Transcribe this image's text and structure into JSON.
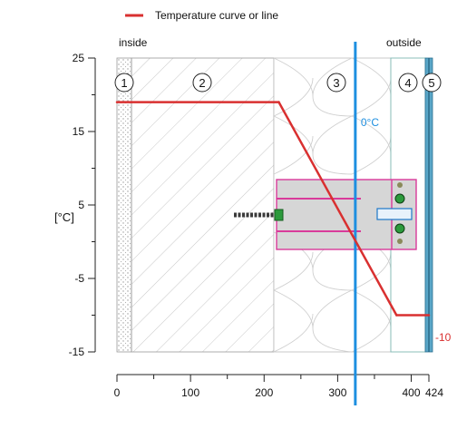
{
  "legend": {
    "label": "Temperature curve or line",
    "color": "#d93030"
  },
  "side_labels": {
    "inside": "inside",
    "outside": "outside"
  },
  "y_axis": {
    "label": "[°C]",
    "ticks": [
      "25",
      "15",
      "5",
      "-5",
      "-15"
    ]
  },
  "x_axis": {
    "ticks": [
      "0",
      "100",
      "200",
      "300",
      "400",
      "424"
    ]
  },
  "layers": [
    "1",
    "2",
    "3",
    "4",
    "5"
  ],
  "zero_line": {
    "label": "0°C",
    "color": "#1e8fe0"
  },
  "outside_temp_label": "-10",
  "chart_data": {
    "type": "line",
    "series": [
      {
        "x": [
          0,
          220,
          380,
          424
        ],
        "y": [
          19,
          19,
          -10,
          -10
        ]
      }
    ],
    "zero_crossing_x": 324,
    "xlim": [
      0,
      424
    ],
    "ylim": [
      -15,
      25
    ],
    "layer_boundaries_mm": [
      0,
      20,
      220,
      390,
      414,
      424
    ],
    "x_ticks": [
      0,
      100,
      200,
      300,
      400,
      424
    ],
    "y_ticks": [
      25,
      15,
      5,
      -5,
      -15
    ]
  }
}
